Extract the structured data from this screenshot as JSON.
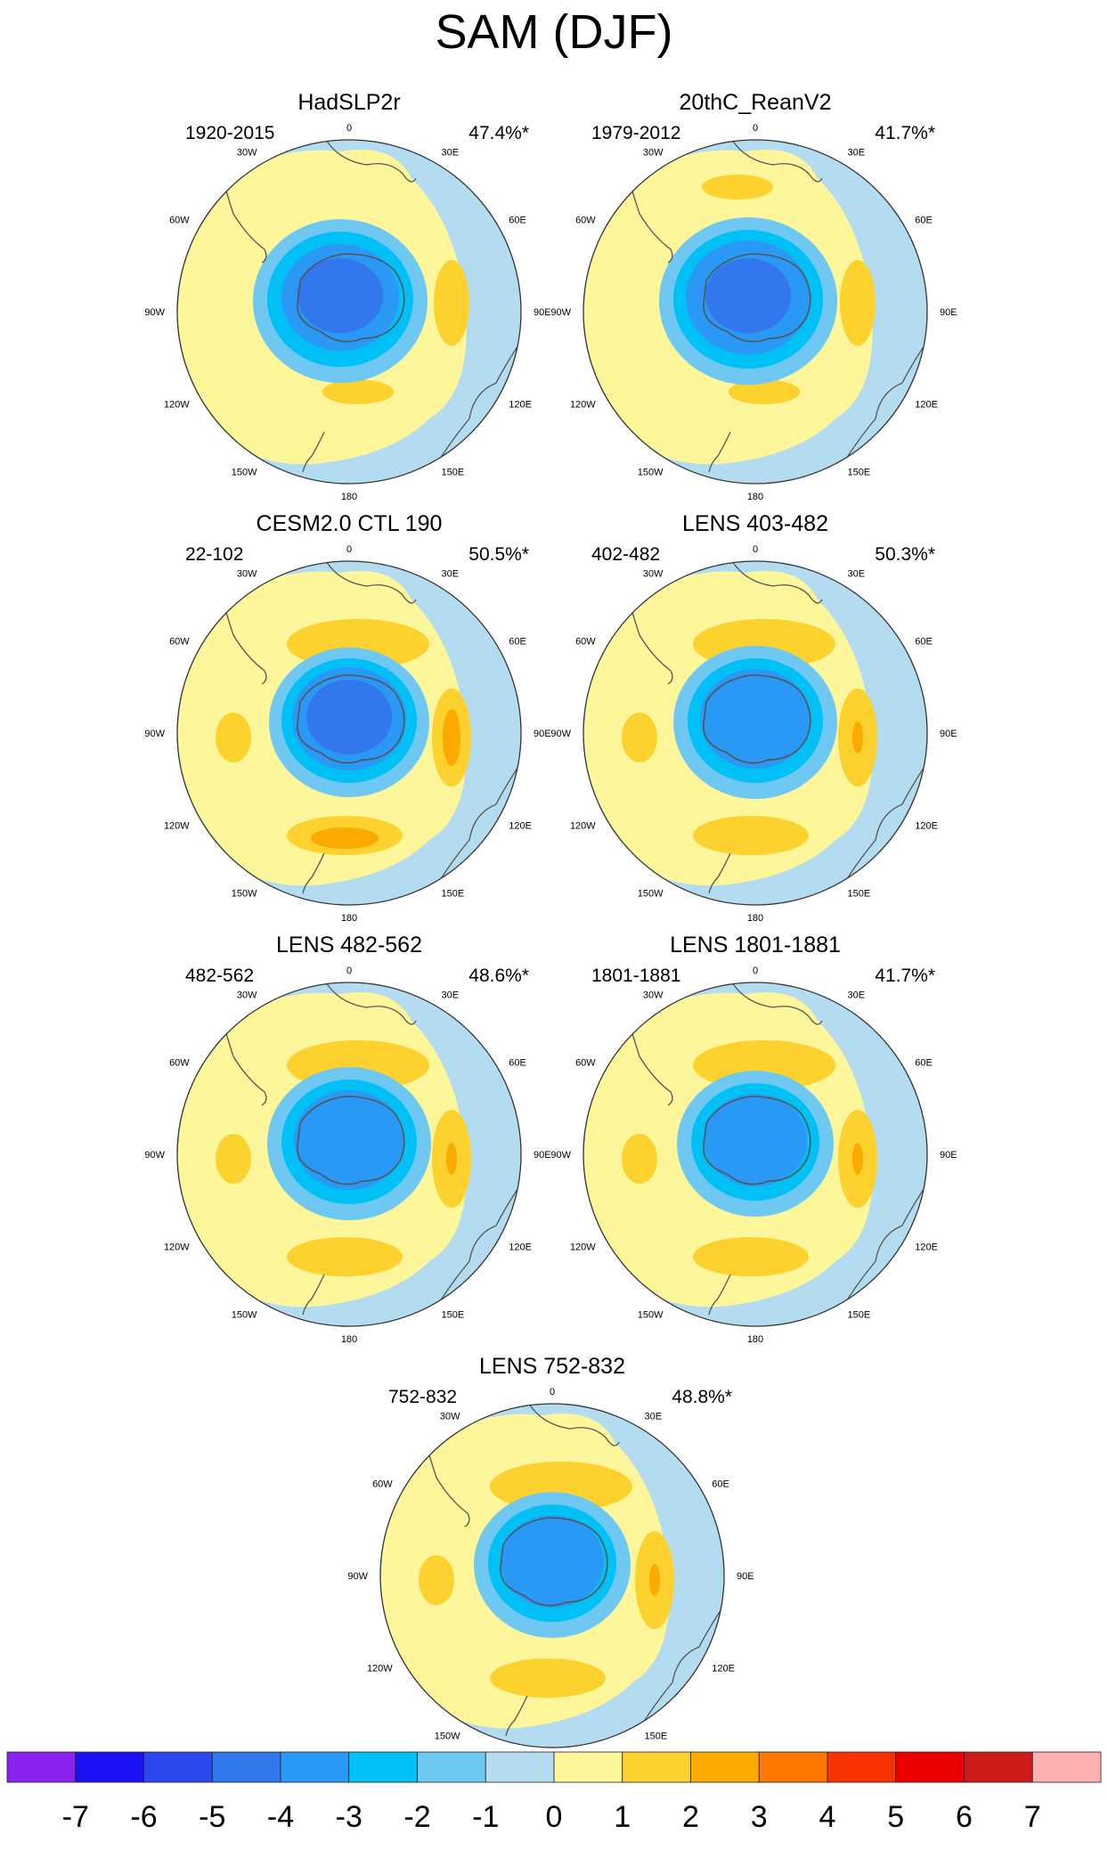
{
  "title": "SAM (DJF)",
  "panels": [
    {
      "title": "HadSLP2r",
      "period": "1920-2015",
      "percent": "47.4%*"
    },
    {
      "title": "20thC_ReanV2",
      "period": "1979-2012",
      "percent": "41.7%*"
    },
    {
      "title": "CESM2.0 CTL 190",
      "period": "22-102",
      "percent": "50.5%*"
    },
    {
      "title": "LENS 403-482",
      "period": "402-482",
      "percent": "50.3%*"
    },
    {
      "title": "LENS 482-562",
      "period": "482-562",
      "percent": "48.6%*"
    },
    {
      "title": "LENS 1801-1881",
      "period": "1801-1881",
      "percent": "41.7%*"
    },
    {
      "title": "LENS 752-832",
      "period": "752-832",
      "percent": "48.8%*"
    }
  ],
  "longitude_labels": {
    "lon_0": "0",
    "lon_30e": "30E",
    "lon_60e": "60E",
    "lon_90e": "90E",
    "lon_120e": "120E",
    "lon_150e": "150E",
    "lon_180": "180",
    "lon_150w": "150W",
    "lon_120w": "120W",
    "lon_90w": "90W",
    "lon_60w": "60W",
    "lon_30w": "30W"
  },
  "colorbar": {
    "labels": [
      "-7",
      "-6",
      "-5",
      "-4",
      "-3",
      "-2",
      "-1",
      "0",
      "1",
      "2",
      "3",
      "4",
      "5",
      "6",
      "7"
    ],
    "colors": [
      "#8b22f0",
      "#1d12f5",
      "#2d48ee",
      "#3377ee",
      "#2a98f5",
      "#00c0f6",
      "#6ec8f2",
      "#b4dcf1",
      "#fdf69a",
      "#fdd22f",
      "#fcaa00",
      "#fc7800",
      "#fc3300",
      "#ec0000",
      "#cf1a1a",
      "#fdb1b1"
    ]
  },
  "colors": {
    "ocean": "#b4dcf1",
    "land_yellow": "#fdf69a",
    "pos1": "#fdd22f",
    "pos2": "#fcaa00",
    "neg2": "#6ec8f2",
    "neg3": "#00c0f6",
    "neg4": "#2a98f5",
    "neg5": "#3377ee",
    "coast": "#555555"
  }
}
